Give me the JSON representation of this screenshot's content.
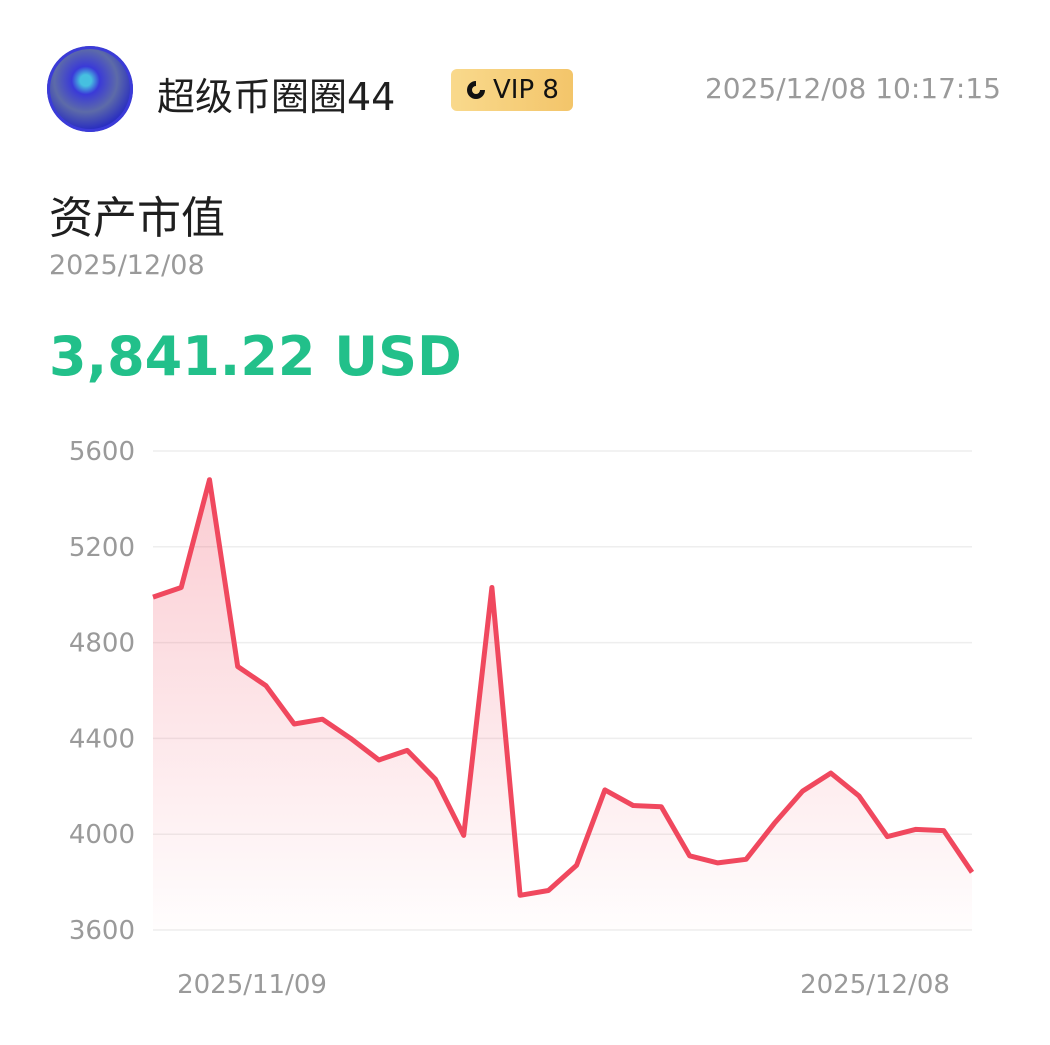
{
  "header": {
    "username": "超级币圈圈44",
    "vip_label": "VIP 8",
    "timestamp": "2025/12/08 10:17:15"
  },
  "summary": {
    "title": "资产市值",
    "date": "2025/12/08",
    "value": "3,841.22 USD"
  },
  "colors": {
    "line": "#f0485e",
    "value": "#22c08a",
    "vip_badge": "#f6cf7a"
  },
  "chart_data": {
    "type": "area",
    "x_start": "2025/11/09",
    "x_end": "2025/12/08",
    "x_tick_labels": [
      "2025/11/09",
      "2025/12/08"
    ],
    "y_ticks": [
      5600,
      5200,
      4800,
      4400,
      4000,
      3600
    ],
    "ylim": [
      3600,
      5600
    ],
    "grid": true,
    "values": [
      4990,
      5030,
      5480,
      4700,
      4620,
      4460,
      4480,
      4400,
      4310,
      4350,
      4230,
      3995,
      5030,
      3745,
      3765,
      3870,
      4185,
      4120,
      4115,
      3910,
      3880,
      3895,
      4045,
      4180,
      4255,
      4160,
      3990,
      4020,
      4015,
      3841
    ]
  }
}
